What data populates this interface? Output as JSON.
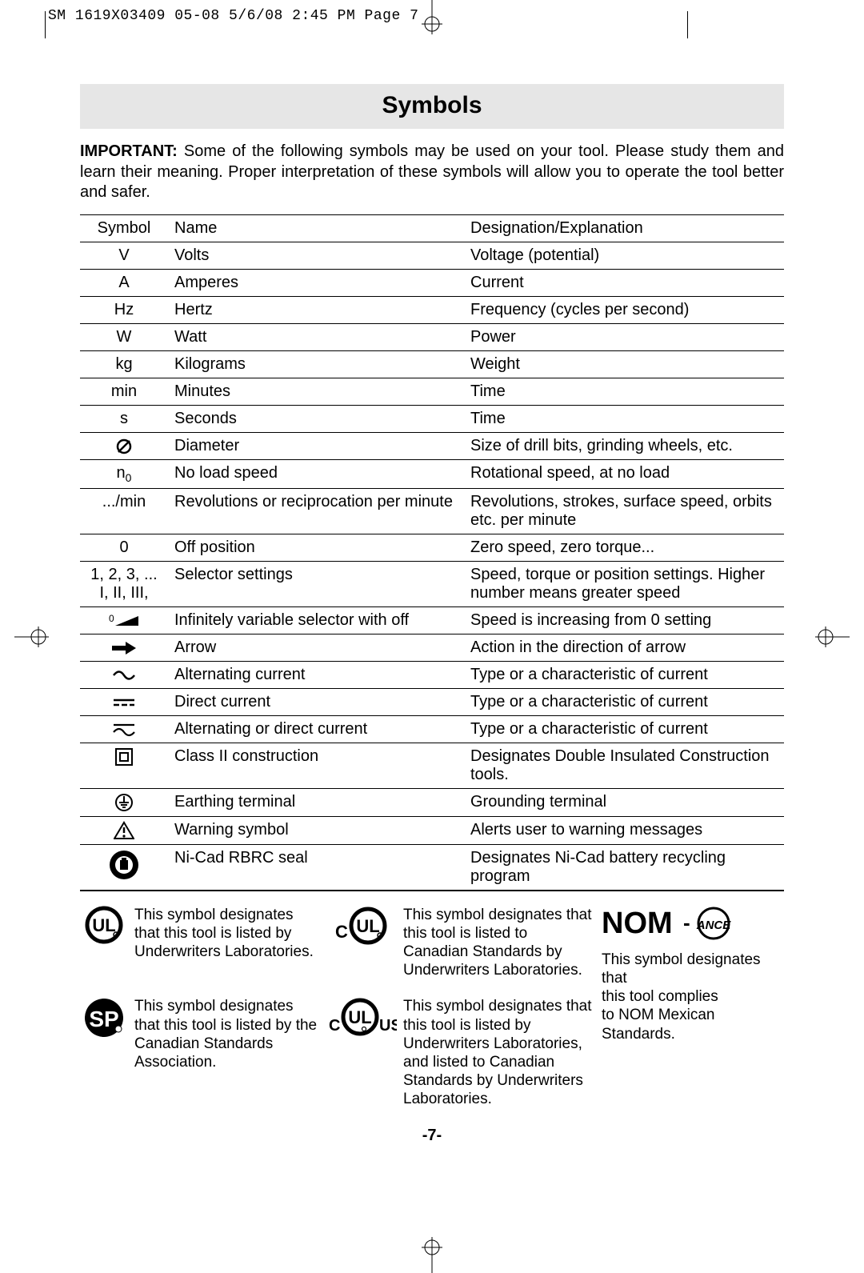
{
  "print_header": "SM 1619X03409 05-08  5/6/08  2:45 PM  Page 7",
  "title": "Symbols",
  "intro_bold": "IMPORTANT:",
  "intro_text": " Some of the following symbols may be used on your tool.  Please study them and learn their meaning.  Proper interpretation of these symbols will allow you to operate the tool better and safer.",
  "table": {
    "headers": {
      "c1": "Symbol",
      "c2": "Name",
      "c3": "Designation/Explanation"
    },
    "rows": [
      {
        "sym": "V",
        "name": "Volts",
        "desc": "Voltage (potential)"
      },
      {
        "sym": "A",
        "name": "Amperes",
        "desc": "Current"
      },
      {
        "sym": "Hz",
        "name": "Hertz",
        "desc": "Frequency (cycles per second)"
      },
      {
        "sym": "W",
        "name": "Watt",
        "desc": "Power"
      },
      {
        "sym": "kg",
        "name": "Kilograms",
        "desc": "Weight"
      },
      {
        "sym": "min",
        "name": "Minutes",
        "desc": "Time"
      },
      {
        "sym": "s",
        "name": "Seconds",
        "desc": "Time"
      },
      {
        "sym": "diameter-icon",
        "name": "Diameter",
        "desc": "Size of drill bits, grinding wheels,  etc."
      },
      {
        "sym": "n0",
        "name": "No load speed",
        "desc": "Rotational speed, at no load"
      },
      {
        "sym": ".../min",
        "name": "Revolutions or reciprocation per minute",
        "desc": "Revolutions, strokes, surface speed, orbits etc. per minute"
      },
      {
        "sym": "0",
        "name": "Off position",
        "desc": "Zero speed, zero torque..."
      },
      {
        "sym": "1, 2, 3, ...\nI, II, III,",
        "name": "Selector settings",
        "desc": "Speed, torque or position settings. Higher number means greater speed"
      },
      {
        "sym": "ramp-icon",
        "name": "Infinitely variable selector with off",
        "desc": "Speed is increasing from 0 setting"
      },
      {
        "sym": "arrow-icon",
        "name": "Arrow",
        "desc": "Action in the direction of arrow"
      },
      {
        "sym": "ac-icon",
        "name": "Alternating current",
        "desc": "Type or a characteristic of current"
      },
      {
        "sym": "dc-icon",
        "name": "Direct current",
        "desc": "Type or a characteristic of current"
      },
      {
        "sym": "acdc-icon",
        "name": "Alternating or direct current",
        "desc": "Type or a characteristic of current"
      },
      {
        "sym": "class2-icon",
        "name": "Class II  construction",
        "desc": "Designates Double Insulated Construction tools."
      },
      {
        "sym": "earth-icon",
        "name": "Earthing terminal",
        "desc": "Grounding terminal"
      },
      {
        "sym": "warning-icon",
        "name": "Warning symbol",
        "desc": "Alerts user to warning messages"
      },
      {
        "sym": "rbrc-icon",
        "name": "Ni-Cad RBRC seal",
        "desc": "Designates Ni-Cad battery recycling program"
      }
    ]
  },
  "certs": {
    "ul": "This symbol designates that this tool is listed by Underwriters Laboratories.",
    "cul": "This symbol designates that this tool is listed to Canadian Standards by Underwriters Laboratories.",
    "csa": "This symbol designates that this tool is listed by the Canadian Standards Association.",
    "culus": "This symbol designates that this tool is listed by Underwriters Laboratories, and listed to Canadian Standards by Underwriters Laboratories.",
    "nom": "This symbol designates that\nthis tool complies\nto NOM Mexican Standards."
  },
  "page_number": "-7-"
}
